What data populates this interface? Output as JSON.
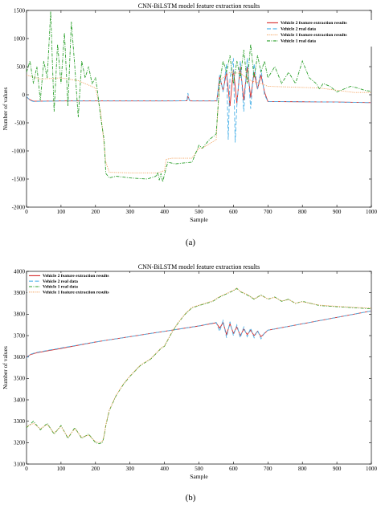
{
  "captions": {
    "a": "(a)",
    "b": "(b)"
  },
  "chart_data": [
    {
      "id": "a",
      "type": "line",
      "title": "CNN-BiLSTM model feature extraction results",
      "xlabel": "Sample",
      "ylabel": "Number of values",
      "xlim": [
        0,
        1000
      ],
      "ylim": [
        -2000,
        1500
      ],
      "xticks": [
        0,
        100,
        200,
        300,
        400,
        500,
        600,
        700,
        800,
        900,
        1000
      ],
      "yticks": [
        1500,
        1000,
        500,
        0,
        -500,
        -1000,
        -1500,
        -2000
      ],
      "grid": false,
      "legend_position": "top-right",
      "series": [
        {
          "name": "Vehicle 2 feature extraction results",
          "color": "#d62728",
          "style": "solid",
          "x": [
            0,
            10,
            20,
            100,
            200,
            300,
            400,
            465,
            468,
            472,
            475,
            500,
            552,
            560,
            570,
            580,
            590,
            600,
            610,
            620,
            630,
            640,
            650,
            660,
            670,
            680,
            690,
            700,
            800,
            900,
            1000
          ],
          "y": [
            -40,
            -90,
            -115,
            -110,
            -110,
            -110,
            -110,
            -108,
            -30,
            -90,
            -110,
            -110,
            -110,
            320,
            80,
            400,
            -200,
            450,
            -150,
            500,
            -100,
            500,
            -50,
            400,
            100,
            350,
            50,
            -120,
            -125,
            -130,
            -140
          ]
        },
        {
          "name": "Vehicle 2 real data",
          "color": "#4fb3e8",
          "style": "dashed",
          "x": [
            0,
            10,
            20,
            100,
            200,
            300,
            400,
            465,
            468,
            472,
            475,
            500,
            552,
            560,
            570,
            580,
            585,
            590,
            600,
            605,
            610,
            620,
            630,
            640,
            650,
            660,
            670,
            680,
            690,
            700,
            800,
            900,
            1000
          ],
          "y": [
            -30,
            -100,
            -120,
            -110,
            -110,
            -110,
            -110,
            -108,
            30,
            -100,
            -110,
            -110,
            -110,
            350,
            50,
            550,
            -800,
            300,
            650,
            -850,
            -200,
            600,
            -300,
            650,
            -250,
            550,
            100,
            450,
            0,
            -120,
            -125,
            -130,
            -140
          ]
        },
        {
          "name": "Vehicle 1 feature extraction results",
          "color": "#f4a460",
          "style": "dotted",
          "x": [
            0,
            40,
            100,
            150,
            200,
            215,
            230,
            240,
            300,
            380,
            400,
            405,
            420,
            480,
            500,
            510,
            550,
            560,
            590,
            620,
            650,
            680,
            700,
            750,
            800,
            850,
            900,
            950,
            1000
          ],
          "y": [
            350,
            280,
            300,
            250,
            120,
            -300,
            -1200,
            -1380,
            -1390,
            -1390,
            -1350,
            -1150,
            -1130,
            -1130,
            -950,
            -950,
            -800,
            250,
            400,
            380,
            250,
            200,
            150,
            140,
            130,
            120,
            80,
            40,
            40
          ]
        },
        {
          "name": "Vehicle 1 real data",
          "color": "#2ca02c",
          "style": "dashdot",
          "x": [
            0,
            10,
            20,
            30,
            40,
            50,
            60,
            70,
            80,
            90,
            100,
            110,
            120,
            130,
            140,
            150,
            160,
            170,
            180,
            190,
            200,
            205,
            215,
            225,
            230,
            240,
            260,
            300,
            350,
            375,
            380,
            385,
            390,
            395,
            400,
            405,
            410,
            430,
            480,
            500,
            510,
            530,
            550,
            560,
            570,
            580,
            590,
            600,
            610,
            620,
            630,
            640,
            650,
            660,
            670,
            680,
            690,
            700,
            720,
            740,
            760,
            780,
            800,
            820,
            840,
            850,
            860,
            880,
            900,
            920,
            940,
            960,
            980,
            1000
          ],
          "y": [
            400,
            600,
            200,
            500,
            -100,
            600,
            300,
            1480,
            -300,
            900,
            200,
            1100,
            -200,
            1300,
            500,
            -400,
            600,
            300,
            500,
            200,
            300,
            100,
            -400,
            -800,
            -1400,
            -1480,
            -1450,
            -1480,
            -1500,
            -1450,
            -1380,
            -1520,
            -1400,
            -1550,
            -1420,
            -1300,
            -1200,
            -1230,
            -1200,
            -900,
            -950,
            -800,
            -700,
            200,
            600,
            400,
            700,
            200,
            600,
            300,
            800,
            200,
            900,
            300,
            700,
            400,
            600,
            300,
            500,
            200,
            400,
            200,
            600,
            300,
            200,
            100,
            200,
            150,
            50,
            100,
            150,
            120,
            80,
            60
          ]
        }
      ]
    },
    {
      "id": "b",
      "type": "line",
      "title": "CNN-BiLSTM model feature extraction results",
      "xlabel": "Sample",
      "ylabel": "Number of values",
      "xlim": [
        0,
        1000
      ],
      "ylim": [
        3100,
        4000
      ],
      "xticks": [
        0,
        100,
        200,
        300,
        400,
        500,
        600,
        700,
        800,
        900,
        1000
      ],
      "yticks": [
        4000,
        3900,
        3800,
        3700,
        3600,
        3500,
        3400,
        3300,
        3200,
        3100
      ],
      "grid": false,
      "legend_position": "top-left",
      "series": [
        {
          "name": "Vehicle 2 feature extraction results",
          "color": "#d62728",
          "style": "solid",
          "x": [
            0,
            10,
            30,
            100,
            200,
            300,
            400,
            500,
            550,
            560,
            570,
            580,
            590,
            600,
            610,
            620,
            630,
            640,
            650,
            660,
            670,
            680,
            690,
            700,
            800,
            900,
            1000
          ],
          "y": [
            3600,
            3610,
            3620,
            3640,
            3670,
            3695,
            3720,
            3745,
            3760,
            3735,
            3760,
            3705,
            3755,
            3710,
            3740,
            3700,
            3730,
            3705,
            3725,
            3700,
            3720,
            3695,
            3710,
            3725,
            3755,
            3785,
            3815
          ]
        },
        {
          "name": "Vehicle 2 real data",
          "color": "#4fb3e8",
          "style": "dashed",
          "x": [
            0,
            10,
            30,
            100,
            200,
            300,
            400,
            500,
            550,
            560,
            570,
            580,
            590,
            600,
            610,
            620,
            630,
            640,
            650,
            660,
            670,
            680,
            690,
            700,
            800,
            900,
            1000
          ],
          "y": [
            3595,
            3612,
            3622,
            3642,
            3670,
            3695,
            3720,
            3745,
            3762,
            3720,
            3770,
            3690,
            3765,
            3700,
            3750,
            3690,
            3740,
            3695,
            3735,
            3690,
            3725,
            3685,
            3712,
            3725,
            3755,
            3785,
            3815
          ]
        },
        {
          "name": "Vehicle 1 real data",
          "color": "#2ca02c",
          "style": "dashdot",
          "x": [
            0,
            20,
            40,
            60,
            80,
            100,
            120,
            140,
            160,
            180,
            200,
            210,
            220,
            225,
            230,
            240,
            260,
            280,
            300,
            330,
            360,
            390,
            400,
            420,
            440,
            460,
            480,
            500,
            520,
            540,
            560,
            580,
            600,
            610,
            620,
            640,
            660,
            680,
            700,
            720,
            740,
            760,
            780,
            800,
            850,
            900,
            950,
            1000
          ],
          "y": [
            3270,
            3300,
            3260,
            3290,
            3240,
            3280,
            3220,
            3270,
            3220,
            3240,
            3200,
            3195,
            3200,
            3230,
            3280,
            3350,
            3420,
            3470,
            3510,
            3560,
            3590,
            3640,
            3650,
            3710,
            3760,
            3800,
            3830,
            3840,
            3850,
            3860,
            3880,
            3895,
            3910,
            3920,
            3905,
            3890,
            3870,
            3890,
            3870,
            3880,
            3860,
            3870,
            3850,
            3860,
            3840,
            3835,
            3830,
            3825
          ]
        },
        {
          "name": "Vehicle 1 feature extraction results",
          "color": "#f4a460",
          "style": "dotted",
          "x": [
            0,
            20,
            40,
            60,
            80,
            100,
            120,
            140,
            160,
            180,
            200,
            210,
            220,
            225,
            230,
            240,
            260,
            280,
            300,
            330,
            360,
            390,
            400,
            420,
            440,
            460,
            480,
            500,
            520,
            540,
            560,
            580,
            600,
            610,
            620,
            640,
            660,
            680,
            700,
            720,
            740,
            760,
            780,
            800,
            850,
            900,
            950,
            1000
          ],
          "y": [
            3275,
            3290,
            3265,
            3285,
            3245,
            3275,
            3225,
            3265,
            3225,
            3235,
            3205,
            3200,
            3205,
            3235,
            3285,
            3352,
            3422,
            3472,
            3512,
            3562,
            3592,
            3642,
            3652,
            3712,
            3762,
            3802,
            3832,
            3842,
            3852,
            3862,
            3882,
            3897,
            3912,
            3922,
            3907,
            3892,
            3872,
            3887,
            3872,
            3878,
            3862,
            3868,
            3852,
            3858,
            3842,
            3837,
            3832,
            3828
          ]
        }
      ]
    }
  ]
}
